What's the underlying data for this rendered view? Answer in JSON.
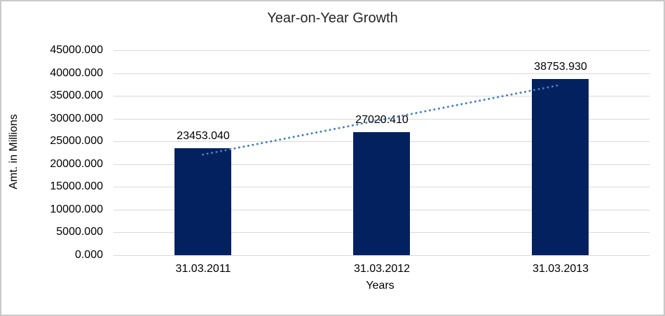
{
  "chart_data": {
    "type": "bar",
    "title": "Year-on-Year Growth",
    "xlabel": "Years",
    "ylabel": "Amt. in Millions",
    "categories": [
      "31.03.2011",
      "31.03.2012",
      "31.03.2013"
    ],
    "values": [
      23453.04,
      27020.41,
      38753.93
    ],
    "data_labels": [
      "23453.040",
      "27020.410",
      "38753.930"
    ],
    "ylim": [
      0,
      45000
    ],
    "ytick_step": 5000,
    "ytick_labels": [
      "0.000",
      "5000.000",
      "10000.000",
      "15000.000",
      "20000.000",
      "25000.000",
      "30000.000",
      "35000.000",
      "40000.000",
      "45000.000"
    ],
    "grid": true,
    "legend": "none",
    "trendline": {
      "type": "linear",
      "style": "dotted"
    },
    "colors": {
      "bar": "#03215f",
      "trendline": "#4a7ebb",
      "gridline": "#d9d9d9",
      "text": "#000000",
      "border": "#c9c9c9"
    }
  }
}
